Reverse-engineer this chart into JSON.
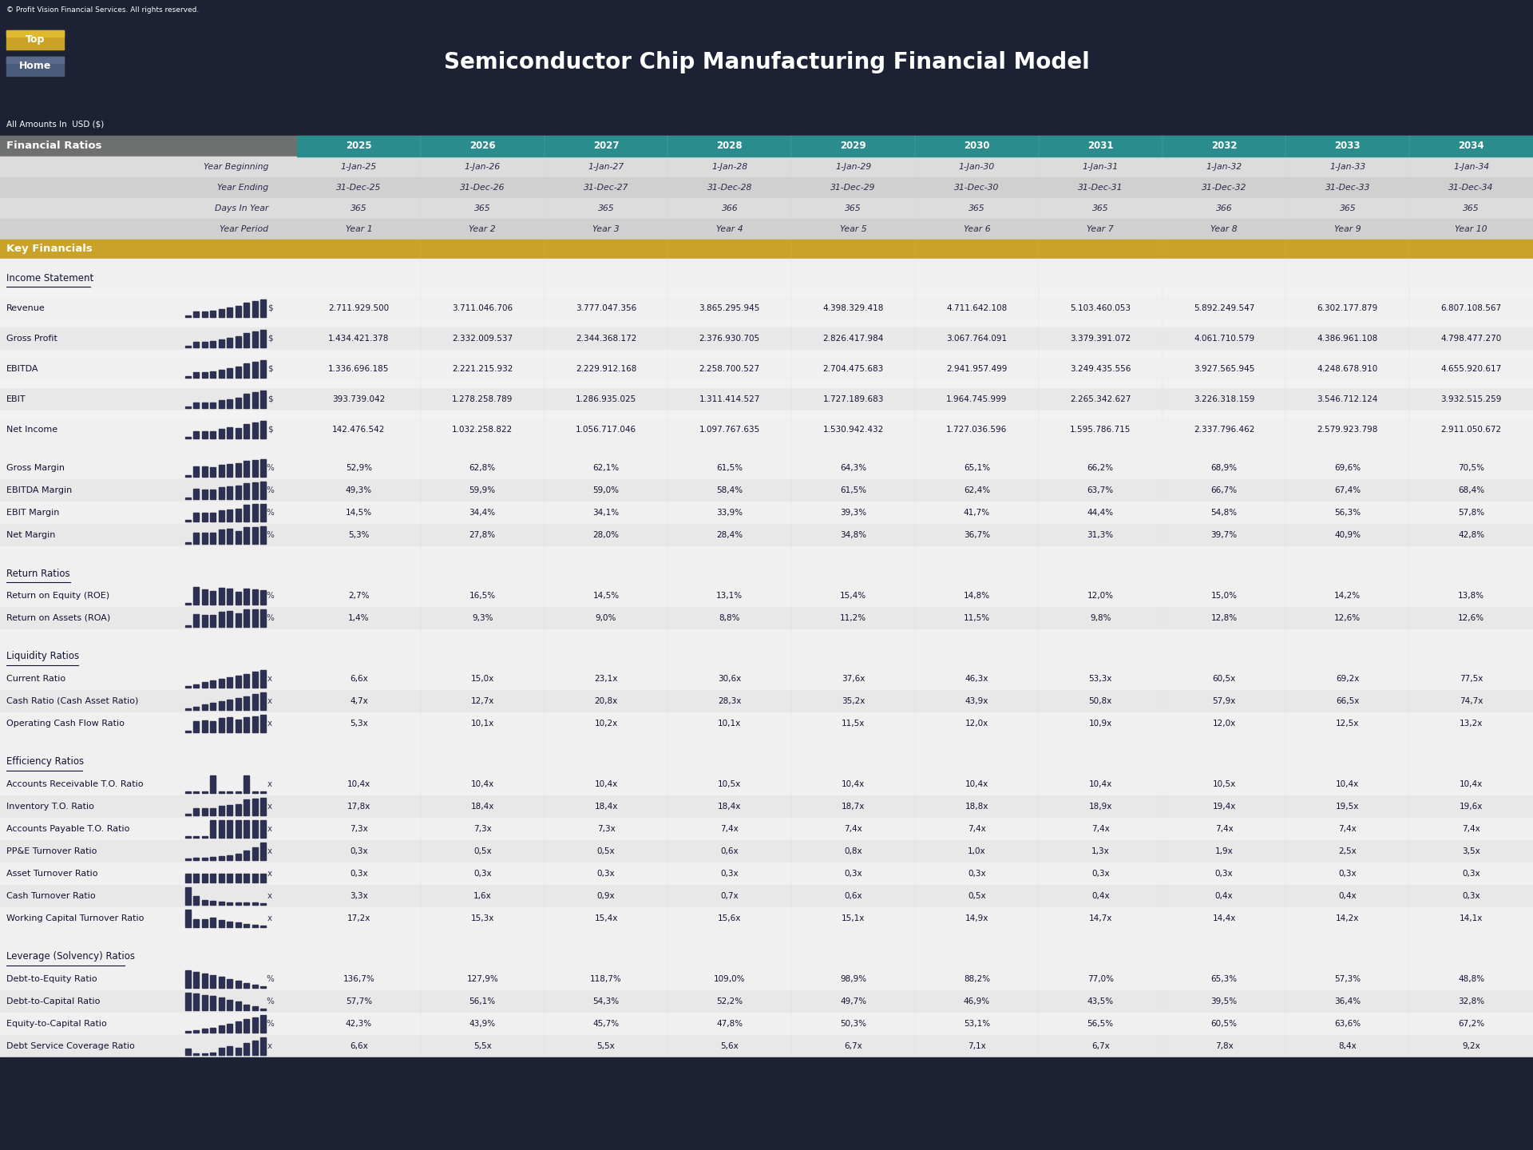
{
  "title": "Semiconductor Chip Manufacturing Financial Model",
  "copyright": "© Profit Vision Financial Services. All rights reserved.",
  "amounts_label": "All Amounts In  USD ($)",
  "bg_color": "#1c2233",
  "header_teal": "#2a8c8c",
  "header_gold": "#c9a227",
  "section_gray": "#787878",
  "row_light": "#e8e8e8",
  "row_white": "#f2f2f2",
  "subheader_bg": "#d8d8d8",
  "years": [
    "2025",
    "2026",
    "2027",
    "2028",
    "2029",
    "2030",
    "2031",
    "2032",
    "2033",
    "2034"
  ],
  "year_beginning": [
    "1-Jan-25",
    "1-Jan-26",
    "1-Jan-27",
    "1-Jan-28",
    "1-Jan-29",
    "1-Jan-30",
    "1-Jan-31",
    "1-Jan-32",
    "1-Jan-33",
    "1-Jan-34"
  ],
  "year_ending": [
    "31-Dec-25",
    "31-Dec-26",
    "31-Dec-27",
    "31-Dec-28",
    "31-Dec-29",
    "31-Dec-30",
    "31-Dec-31",
    "31-Dec-32",
    "31-Dec-33",
    "31-Dec-34"
  ],
  "days_in_year": [
    "365",
    "365",
    "365",
    "366",
    "365",
    "365",
    "365",
    "366",
    "365",
    "365"
  ],
  "year_period": [
    "Year 1",
    "Year 2",
    "Year 3",
    "Year 4",
    "Year 5",
    "Year 6",
    "Year 7",
    "Year 8",
    "Year 9",
    "Year 10"
  ],
  "income_statement": {
    "Revenue": [
      "2.711.929.500",
      "3.711.046.706",
      "3.777.047.356",
      "3.865.295.945",
      "4.398.329.418",
      "4.711.642.108",
      "5.103.460.053",
      "5.892.249.547",
      "6.302.177.879",
      "6.807.108.567"
    ],
    "Gross Profit": [
      "1.434.421.378",
      "2.332.009.537",
      "2.344.368.172",
      "2.376.930.705",
      "2.826.417.984",
      "3.067.764.091",
      "3.379.391.072",
      "4.061.710.579",
      "4.386.961.108",
      "4.798.477.270"
    ],
    "EBITDA": [
      "1.336.696.185",
      "2.221.215.932",
      "2.229.912.168",
      "2.258.700.527",
      "2.704.475.683",
      "2.941.957.499",
      "3.249.435.556",
      "3.927.565.945",
      "4.248.678.910",
      "4.655.920.617"
    ],
    "EBIT": [
      "393.739.042",
      "1.278.258.789",
      "1.286.935.025",
      "1.311.414.527",
      "1.727.189.683",
      "1.964.745.999",
      "2.265.342.627",
      "3.226.318.159",
      "3.546.712.124",
      "3.932.515.259"
    ],
    "Net Income": [
      "142.476.542",
      "1.032.258.822",
      "1.056.717.046",
      "1.097.767.635",
      "1.530.942.432",
      "1.727.036.596",
      "1.595.786.715",
      "2.337.796.462",
      "2.579.923.798",
      "2.911.050.672"
    ]
  },
  "margins": {
    "Gross Margin": [
      "52,9%",
      "62,8%",
      "62,1%",
      "61,5%",
      "64,3%",
      "65,1%",
      "66,2%",
      "68,9%",
      "69,6%",
      "70,5%"
    ],
    "EBITDA Margin": [
      "49,3%",
      "59,9%",
      "59,0%",
      "58,4%",
      "61,5%",
      "62,4%",
      "63,7%",
      "66,7%",
      "67,4%",
      "68,4%"
    ],
    "EBIT Margin": [
      "14,5%",
      "34,4%",
      "34,1%",
      "33,9%",
      "39,3%",
      "41,7%",
      "44,4%",
      "54,8%",
      "56,3%",
      "57,8%"
    ],
    "Net Margin": [
      "5,3%",
      "27,8%",
      "28,0%",
      "28,4%",
      "34,8%",
      "36,7%",
      "31,3%",
      "39,7%",
      "40,9%",
      "42,8%"
    ]
  },
  "return_ratios": {
    "Return on Equity (ROE)": [
      "2,7%",
      "16,5%",
      "14,5%",
      "13,1%",
      "15,4%",
      "14,8%",
      "12,0%",
      "15,0%",
      "14,2%",
      "13,8%"
    ],
    "Return on Assets (ROA)": [
      "1,4%",
      "9,3%",
      "9,0%",
      "8,8%",
      "11,2%",
      "11,5%",
      "9,8%",
      "12,8%",
      "12,6%",
      "12,6%"
    ]
  },
  "liquidity_ratios": {
    "Current Ratio": [
      "6,6x",
      "15,0x",
      "23,1x",
      "30,6x",
      "37,6x",
      "46,3x",
      "53,3x",
      "60,5x",
      "69,2x",
      "77,5x"
    ],
    "Cash Ratio (Cash Asset Ratio)": [
      "4,7x",
      "12,7x",
      "20,8x",
      "28,3x",
      "35,2x",
      "43,9x",
      "50,8x",
      "57,9x",
      "66,5x",
      "74,7x"
    ],
    "Operating Cash Flow Ratio": [
      "5,3x",
      "10,1x",
      "10,2x",
      "10,1x",
      "11,5x",
      "12,0x",
      "10,9x",
      "12,0x",
      "12,5x",
      "13,2x"
    ]
  },
  "efficiency_ratios": {
    "Accounts Receivable T.O. Ratio": [
      "10,4x",
      "10,4x",
      "10,4x",
      "10,5x",
      "10,4x",
      "10,4x",
      "10,4x",
      "10,5x",
      "10,4x",
      "10,4x"
    ],
    "Inventory T.O. Ratio": [
      "17,8x",
      "18,4x",
      "18,4x",
      "18,4x",
      "18,7x",
      "18,8x",
      "18,9x",
      "19,4x",
      "19,5x",
      "19,6x"
    ],
    "Accounts Payable T.O. Ratio": [
      "7,3x",
      "7,3x",
      "7,3x",
      "7,4x",
      "7,4x",
      "7,4x",
      "7,4x",
      "7,4x",
      "7,4x",
      "7,4x"
    ],
    "PP&E Turnover Ratio": [
      "0,3x",
      "0,5x",
      "0,5x",
      "0,6x",
      "0,8x",
      "1,0x",
      "1,3x",
      "1,9x",
      "2,5x",
      "3,5x"
    ],
    "Asset Turnover Ratio": [
      "0,3x",
      "0,3x",
      "0,3x",
      "0,3x",
      "0,3x",
      "0,3x",
      "0,3x",
      "0,3x",
      "0,3x",
      "0,3x"
    ],
    "Cash Turnover Ratio": [
      "3,3x",
      "1,6x",
      "0,9x",
      "0,7x",
      "0,6x",
      "0,5x",
      "0,4x",
      "0,4x",
      "0,4x",
      "0,3x"
    ],
    "Working Capital Turnover Ratio": [
      "17,2x",
      "15,3x",
      "15,4x",
      "15,6x",
      "15,1x",
      "14,9x",
      "14,7x",
      "14,4x",
      "14,2x",
      "14,1x"
    ]
  },
  "leverage_ratios": {
    "Debt-to-Equity Ratio": [
      "136,7%",
      "127,9%",
      "118,7%",
      "109,0%",
      "98,9%",
      "88,2%",
      "77,0%",
      "65,3%",
      "57,3%",
      "48,8%"
    ],
    "Debt-to-Capital Ratio": [
      "57,7%",
      "56,1%",
      "54,3%",
      "52,2%",
      "49,7%",
      "46,9%",
      "43,5%",
      "39,5%",
      "36,4%",
      "32,8%"
    ],
    "Equity-to-Capital Ratio": [
      "42,3%",
      "43,9%",
      "45,7%",
      "47,8%",
      "50,3%",
      "53,1%",
      "56,5%",
      "60,5%",
      "63,6%",
      "67,2%"
    ],
    "Debt Service Coverage Ratio": [
      "6,6x",
      "5,5x",
      "5,5x",
      "5,6x",
      "6,7x",
      "7,1x",
      "6,7x",
      "7,8x",
      "8,4x",
      "9,2x"
    ]
  },
  "leverage_units": [
    "%",
    "%",
    "%",
    "x"
  ]
}
